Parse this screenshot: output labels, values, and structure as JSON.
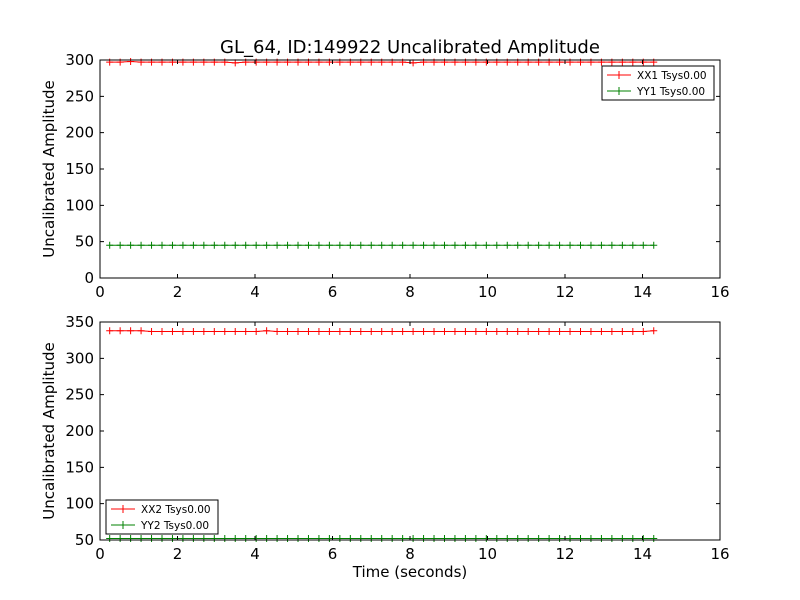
{
  "chart_data": [
    {
      "type": "line",
      "title": "GL_64, ID:149922 Uncalibrated Amplitude",
      "xlabel": "",
      "ylabel": "Uncalibrated Amplitude",
      "xlim": [
        0,
        16
      ],
      "ylim": [
        0,
        300
      ],
      "xticks": [
        0,
        2,
        4,
        6,
        8,
        10,
        12,
        14,
        16
      ],
      "yticks": [
        0,
        50,
        100,
        150,
        200,
        250,
        300
      ],
      "legend_position": "top-right",
      "x_start": 0.25,
      "x_step": 0.27,
      "series": [
        {
          "name": "XX1 Tsys0.00",
          "color": "#ff0000",
          "values": [
            297,
            297,
            298,
            297,
            297,
            297,
            297,
            297,
            297,
            297,
            297,
            297,
            296,
            297,
            297,
            297,
            297,
            297,
            297,
            297,
            297,
            297,
            297,
            297,
            297,
            297,
            297,
            297,
            297,
            296,
            297,
            297,
            297,
            297,
            297,
            297,
            297,
            297,
            297,
            297,
            297,
            297,
            297,
            297,
            297,
            297,
            297,
            297,
            297,
            297,
            297,
            297,
            297
          ]
        },
        {
          "name": "YY1 Tsys0.00",
          "color": "#008000",
          "values": [
            45,
            45,
            45,
            45,
            45,
            45,
            45,
            45,
            45,
            45,
            45,
            45,
            45,
            45,
            45,
            45,
            45,
            45,
            45,
            45,
            45,
            45,
            45,
            45,
            45,
            45,
            45,
            45,
            45,
            45,
            45,
            45,
            45,
            45,
            45,
            45,
            45,
            45,
            45,
            45,
            45,
            45,
            45,
            45,
            45,
            45,
            45,
            45,
            45,
            45,
            45,
            45,
            45
          ]
        }
      ]
    },
    {
      "type": "line",
      "title": "",
      "xlabel": "Time (seconds)",
      "ylabel": "Uncalibrated Amplitude",
      "xlim": [
        0,
        16
      ],
      "ylim": [
        50,
        350
      ],
      "xticks": [
        0,
        2,
        4,
        6,
        8,
        10,
        12,
        14,
        16
      ],
      "yticks": [
        50,
        100,
        150,
        200,
        250,
        300,
        350
      ],
      "legend_position": "bottom-left",
      "x_start": 0.25,
      "x_step": 0.27,
      "series": [
        {
          "name": "XX2 Tsys0.00",
          "color": "#ff0000",
          "values": [
            338,
            338,
            338,
            338,
            337,
            337,
            337,
            337,
            337,
            337,
            337,
            337,
            337,
            337,
            337,
            338,
            337,
            337,
            337,
            337,
            337,
            337,
            337,
            337,
            337,
            337,
            337,
            337,
            337,
            337,
            337,
            337,
            337,
            337,
            337,
            337,
            337,
            337,
            337,
            337,
            337,
            337,
            337,
            337,
            337,
            337,
            337,
            337,
            337,
            337,
            337,
            337,
            338
          ]
        },
        {
          "name": "YY2 Tsys0.00",
          "color": "#008000",
          "values": [
            52,
            52,
            52,
            52,
            52,
            52,
            52,
            52,
            52,
            52,
            52,
            52,
            52,
            52,
            52,
            52,
            52,
            52,
            52,
            52,
            52,
            52,
            52,
            52,
            52,
            52,
            52,
            52,
            52,
            52,
            52,
            52,
            52,
            52,
            52,
            52,
            52,
            52,
            52,
            52,
            52,
            52,
            52,
            52,
            52,
            52,
            52,
            52,
            52,
            52,
            52,
            52,
            52
          ]
        }
      ]
    }
  ]
}
